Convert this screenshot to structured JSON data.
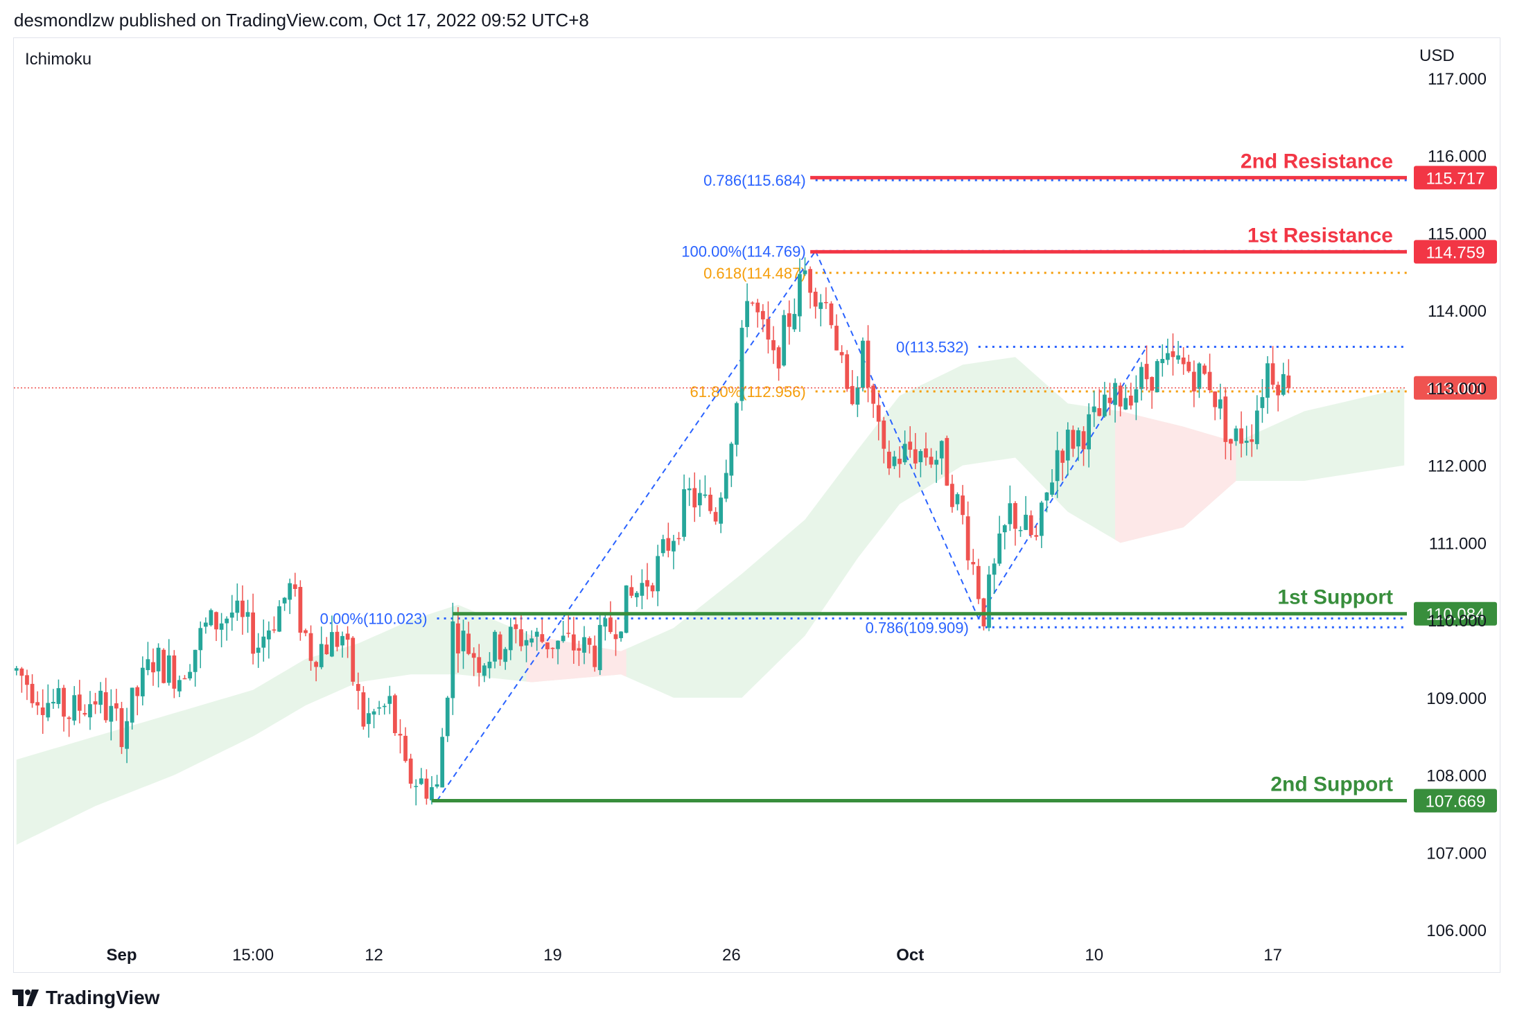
{
  "header": {
    "publisher_line": "desmondlzw published on TradingView.com, Oct 17, 2022 09:52 UTC+8"
  },
  "footer": {
    "brand": "TradingView",
    "logo_icon": "tradingview-logo-icon"
  },
  "colors": {
    "up": "#26a69a",
    "down": "#ef5350",
    "resistance": "#f23645",
    "support": "#388e3c",
    "fib_blue": "#2962ff",
    "fib_orange": "#f59e0b",
    "cloud_green": "#e8f5e9",
    "cloud_red": "#fde8e8"
  },
  "chart_data": {
    "type": "candlestick",
    "indicator_label": "Ichimoku",
    "currency_label": "USD",
    "ylim": [
      106.0,
      117.0
    ],
    "y_ticks": [
      "117.000",
      "116.000",
      "115.000",
      "114.000",
      "113.000",
      "112.000",
      "111.000",
      "110.000",
      "109.000",
      "108.000",
      "107.000",
      "106.000"
    ],
    "x_ticks": [
      {
        "label": "Sep",
        "bar": 20,
        "bold": true
      },
      {
        "label": "15:00",
        "bar": 45,
        "bold": false
      },
      {
        "label": "12",
        "bar": 68,
        "bold": false
      },
      {
        "label": "19",
        "bar": 102,
        "bold": false
      },
      {
        "label": "26",
        "bar": 136,
        "bold": false
      },
      {
        "label": "Oct",
        "bar": 170,
        "bold": true
      },
      {
        "label": "10",
        "bar": 205,
        "bold": false
      },
      {
        "label": "17",
        "bar": 239,
        "bold": false
      }
    ],
    "bar_count": 265,
    "current_price": 113.001,
    "levels": [
      {
        "name": "2nd Resistance",
        "value": 115.717,
        "tag": "115.717",
        "kind": "resistance",
        "start_bar": 151
      },
      {
        "name": "1st Resistance",
        "value": 114.759,
        "tag": "114.759",
        "kind": "resistance",
        "start_bar": 151
      },
      {
        "name": "1st Support",
        "value": 110.084,
        "tag": "110.084",
        "kind": "support",
        "start_bar": 83
      },
      {
        "name": "2nd Support",
        "value": 107.669,
        "tag": "107.669",
        "kind": "support",
        "start_bar": 79
      }
    ],
    "fib_labels": [
      {
        "text": "0.786(115.684)",
        "value": 115.684,
        "color": "blue",
        "start_bar": 152
      },
      {
        "text": "100.00%(114.769)",
        "value": 114.769,
        "color": "blue",
        "start_bar": 152
      },
      {
        "text": "0.618(114.487)",
        "value": 114.487,
        "color": "orange",
        "start_bar": 152
      },
      {
        "text": "0(113.532)",
        "value": 113.532,
        "color": "blue",
        "start_bar": 183
      },
      {
        "text": "61.80%(112.956)",
        "value": 112.956,
        "color": "orange",
        "start_bar": 152
      },
      {
        "text": "0.00%(110.023)",
        "value": 110.023,
        "color": "blue",
        "start_bar": 80
      },
      {
        "text": "0.786(109.909)",
        "value": 109.909,
        "color": "blue",
        "start_bar": 183
      }
    ],
    "zigzag": [
      {
        "bar": 80,
        "value": 107.669
      },
      {
        "bar": 152,
        "value": 114.769
      },
      {
        "bar": 183,
        "value": 110.023
      },
      {
        "bar": 215,
        "value": 113.532
      }
    ],
    "trend_path": [
      {
        "bar": 0,
        "value": 109.35
      },
      {
        "bar": 5,
        "value": 109.0
      },
      {
        "bar": 10,
        "value": 108.8
      },
      {
        "bar": 15,
        "value": 109.0
      },
      {
        "bar": 20,
        "value": 108.6
      },
      {
        "bar": 26,
        "value": 109.5
      },
      {
        "bar": 31,
        "value": 109.3
      },
      {
        "bar": 36,
        "value": 109.9
      },
      {
        "bar": 41,
        "value": 110.1
      },
      {
        "bar": 46,
        "value": 109.7
      },
      {
        "bar": 52,
        "value": 110.4
      },
      {
        "bar": 56,
        "value": 109.6
      },
      {
        "bar": 62,
        "value": 109.8
      },
      {
        "bar": 66,
        "value": 108.7
      },
      {
        "bar": 71,
        "value": 108.9
      },
      {
        "bar": 74,
        "value": 108.0
      },
      {
        "bar": 80,
        "value": 107.8
      },
      {
        "bar": 83,
        "value": 109.9
      },
      {
        "bar": 88,
        "value": 109.5
      },
      {
        "bar": 95,
        "value": 109.8
      },
      {
        "bar": 104,
        "value": 109.7
      },
      {
        "bar": 110,
        "value": 109.6
      },
      {
        "bar": 116,
        "value": 110.2
      },
      {
        "bar": 122,
        "value": 110.7
      },
      {
        "bar": 128,
        "value": 111.6
      },
      {
        "bar": 133,
        "value": 111.4
      },
      {
        "bar": 137,
        "value": 112.8
      },
      {
        "bar": 139,
        "value": 114.3
      },
      {
        "bar": 144,
        "value": 113.3
      },
      {
        "bar": 150,
        "value": 114.5
      },
      {
        "bar": 155,
        "value": 114.0
      },
      {
        "bar": 158,
        "value": 112.8
      },
      {
        "bar": 161,
        "value": 113.4
      },
      {
        "bar": 165,
        "value": 112.0
      },
      {
        "bar": 170,
        "value": 112.2
      },
      {
        "bar": 176,
        "value": 112.1
      },
      {
        "bar": 180,
        "value": 111.3
      },
      {
        "bar": 184,
        "value": 110.1
      },
      {
        "bar": 189,
        "value": 111.4
      },
      {
        "bar": 194,
        "value": 111.0
      },
      {
        "bar": 198,
        "value": 112.2
      },
      {
        "bar": 204,
        "value": 112.5
      },
      {
        "bar": 210,
        "value": 112.9
      },
      {
        "bar": 216,
        "value": 113.2
      },
      {
        "bar": 221,
        "value": 113.3
      },
      {
        "bar": 227,
        "value": 113.1
      },
      {
        "bar": 231,
        "value": 112.3
      },
      {
        "bar": 235,
        "value": 112.5
      },
      {
        "bar": 238,
        "value": 113.3
      },
      {
        "bar": 242,
        "value": 113.0
      }
    ],
    "cloud_upper": [
      {
        "bar": 0,
        "value": 108.2
      },
      {
        "bar": 15,
        "value": 108.5
      },
      {
        "bar": 30,
        "value": 108.8
      },
      {
        "bar": 45,
        "value": 109.1
      },
      {
        "bar": 55,
        "value": 109.5
      },
      {
        "bar": 65,
        "value": 109.7
      },
      {
        "bar": 75,
        "value": 110.0
      },
      {
        "bar": 84,
        "value": 110.2
      },
      {
        "bar": 98,
        "value": 109.8
      },
      {
        "bar": 115,
        "value": 109.6
      },
      {
        "bar": 125,
        "value": 109.9
      },
      {
        "bar": 138,
        "value": 110.6
      },
      {
        "bar": 150,
        "value": 111.3
      },
      {
        "bar": 160,
        "value": 112.2
      },
      {
        "bar": 168,
        "value": 112.9
      },
      {
        "bar": 180,
        "value": 113.3
      },
      {
        "bar": 190,
        "value": 113.4
      },
      {
        "bar": 200,
        "value": 112.8
      },
      {
        "bar": 210,
        "value": 112.7
      },
      {
        "bar": 222,
        "value": 112.5
      },
      {
        "bar": 232,
        "value": 112.3
      },
      {
        "bar": 245,
        "value": 112.7
      },
      {
        "bar": 264,
        "value": 113.0
      }
    ],
    "cloud_lower": [
      {
        "bar": 0,
        "value": 107.1
      },
      {
        "bar": 15,
        "value": 107.6
      },
      {
        "bar": 30,
        "value": 108.0
      },
      {
        "bar": 45,
        "value": 108.5
      },
      {
        "bar": 55,
        "value": 108.9
      },
      {
        "bar": 65,
        "value": 109.2
      },
      {
        "bar": 75,
        "value": 109.3
      },
      {
        "bar": 84,
        "value": 109.3
      },
      {
        "bar": 98,
        "value": 109.2
      },
      {
        "bar": 115,
        "value": 109.3
      },
      {
        "bar": 125,
        "value": 109.0
      },
      {
        "bar": 138,
        "value": 109.0
      },
      {
        "bar": 150,
        "value": 109.8
      },
      {
        "bar": 160,
        "value": 110.8
      },
      {
        "bar": 168,
        "value": 111.5
      },
      {
        "bar": 180,
        "value": 112.0
      },
      {
        "bar": 190,
        "value": 112.1
      },
      {
        "bar": 200,
        "value": 111.4
      },
      {
        "bar": 210,
        "value": 111.0
      },
      {
        "bar": 222,
        "value": 111.2
      },
      {
        "bar": 232,
        "value": 111.8
      },
      {
        "bar": 245,
        "value": 111.8
      },
      {
        "bar": 264,
        "value": 112.0
      }
    ],
    "red_cloud_segments": [
      {
        "from": 97,
        "to": 116
      },
      {
        "from": 209,
        "to": 232
      }
    ]
  }
}
